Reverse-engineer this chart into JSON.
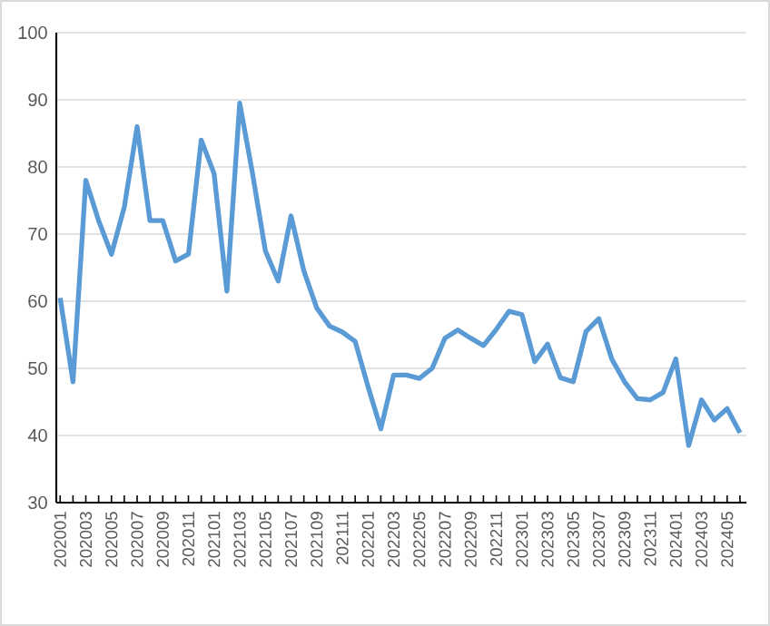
{
  "chart_data": {
    "type": "line",
    "categories": [
      "202001",
      null,
      "202003",
      null,
      "202005",
      null,
      "202007",
      null,
      "202009",
      null,
      "202011",
      null,
      "202101",
      null,
      "202103",
      null,
      "202105",
      null,
      "202107",
      null,
      "202109",
      null,
      "202111",
      null,
      "202201",
      null,
      "202203",
      null,
      "202205",
      null,
      "202207",
      null,
      "202209",
      null,
      "202211",
      null,
      "202301",
      null,
      "202303",
      null,
      "202305",
      null,
      "202307",
      null,
      "202309",
      null,
      "202311",
      null,
      "202401",
      null,
      "202403",
      null,
      "202405",
      null
    ],
    "series": [
      {
        "color": "#5b9bd5",
        "values": [
          60.5,
          48,
          78,
          72,
          67,
          74,
          86,
          72,
          72,
          66,
          67,
          84,
          79,
          61.5,
          89.5,
          79,
          67.5,
          63,
          72.7,
          64.5,
          59,
          56.3,
          55.4,
          54,
          47.3,
          41,
          49,
          49,
          48.5,
          50,
          54.5,
          55.7,
          54.5,
          53.4,
          55.8,
          58.5,
          58,
          51,
          53.6,
          48.6,
          48,
          55.5,
          57.4,
          51.4,
          48,
          45.5,
          45.3,
          46.4,
          51.4,
          38.5,
          45.3,
          42.3,
          44,
          40.4
        ]
      }
    ],
    "ylim": [
      30,
      100
    ],
    "yticks": [
      30,
      40,
      50,
      60,
      70,
      80,
      90,
      100
    ],
    "grid": "y",
    "marker": "none",
    "line_style": "solid"
  }
}
